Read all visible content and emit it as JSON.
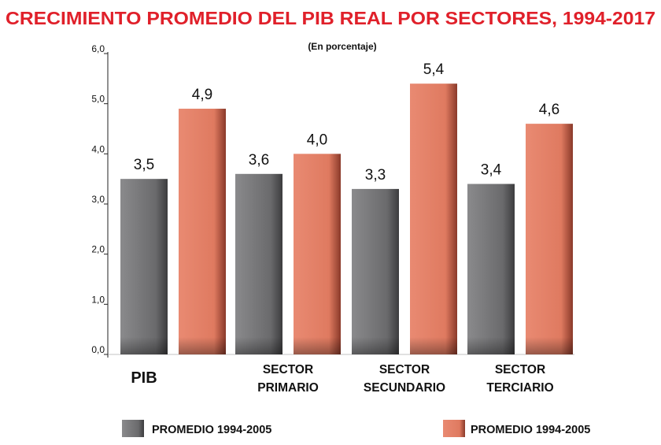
{
  "colors": {
    "title": "#e0202a",
    "series_gray": "#6e6e70",
    "series_salmon": "#e07b62",
    "axis": "#222222",
    "text": "#111111"
  },
  "chart_data": {
    "type": "bar",
    "title": "CRECIMIENTO PROMEDIO DEL PIB REAL POR SECTORES, 1994-2017",
    "subtitle": "(En porcentaje)",
    "categories": [
      "PIB",
      "SECTOR PRIMARIO",
      "SECTOR SECUNDARIO",
      "SECTOR TERCIARIO"
    ],
    "series": [
      {
        "name": "PROMEDIO 1994-2005",
        "values": [
          3.5,
          3.6,
          3.3,
          3.4
        ],
        "value_labels": [
          "3,5",
          "3,6",
          "3,3",
          "3,4"
        ],
        "color": "#6e6e70"
      },
      {
        "name": "PROMEDIO 1994-2005",
        "values": [
          4.9,
          4.0,
          5.4,
          4.6
        ],
        "value_labels": [
          "4,9",
          "4,0",
          "5,4",
          "4,6"
        ],
        "color": "#e07b62"
      }
    ],
    "ylim": [
      0,
      6
    ],
    "yticks": [
      "0,0",
      "1,0",
      "2,0",
      "3,0",
      "4,0",
      "5,0",
      "6,0"
    ],
    "grid": false,
    "legend": "bottom"
  }
}
